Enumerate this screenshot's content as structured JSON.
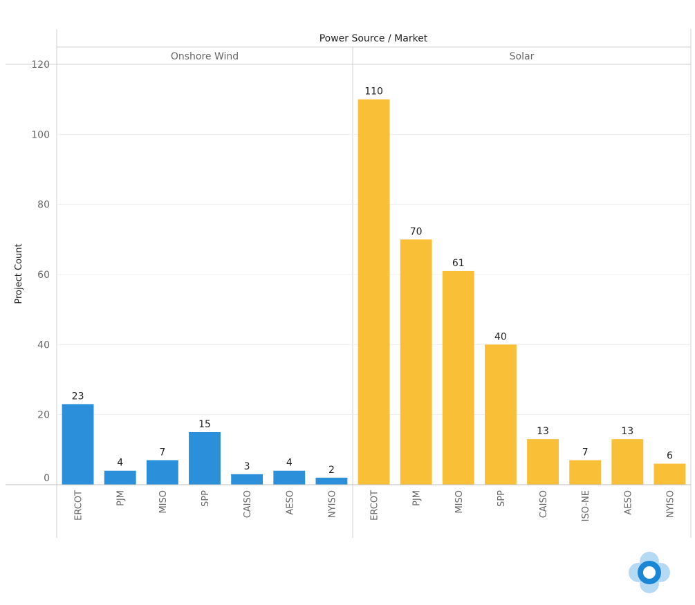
{
  "chart_data": {
    "type": "bar",
    "header_title": "Power Source / Market",
    "ylabel": "Project Count",
    "ylim": [
      0,
      120
    ],
    "yticks": [
      0,
      20,
      40,
      60,
      80,
      100,
      120
    ],
    "grid": true,
    "panels": [
      {
        "name": "Onshore Wind",
        "color": "#2b8fd9",
        "categories": [
          "ERCOT",
          "PJM",
          "MISO",
          "SPP",
          "CAISO",
          "AESO",
          "NYISO"
        ],
        "values": [
          23,
          4,
          7,
          15,
          3,
          4,
          2
        ]
      },
      {
        "name": "Solar",
        "color": "#f9bf36",
        "categories": [
          "ERCOT",
          "PJM",
          "MISO",
          "SPP",
          "CAISO",
          "ISO-NE",
          "AESO",
          "NYISO"
        ],
        "values": [
          110,
          70,
          61,
          40,
          13,
          7,
          13,
          6
        ]
      }
    ]
  },
  "logo": {
    "icon": "circle-ring-logo",
    "color": "#1a86d4",
    "petal_color": "#a9d3f2"
  }
}
